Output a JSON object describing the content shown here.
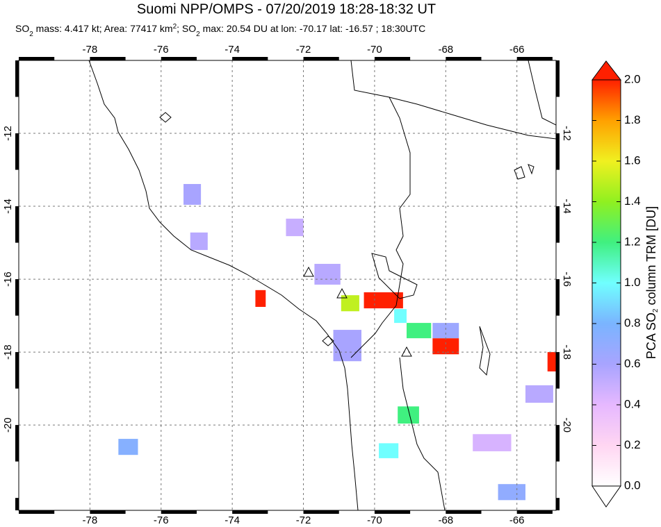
{
  "chart_data": {
    "type": "map",
    "title": "Suomi NPP/OMPS - 07/20/2019 18:28-18:32 UT",
    "subtitle": [
      "SO",
      "2",
      " mass: 4.417 kt; Area: 77417 km",
      "2",
      "; SO",
      "2",
      " max: 20.54 DU at lon: -70.17 lat: -16.57 ; 18:30UTC"
    ],
    "xlim": [
      -80,
      -64.9
    ],
    "ylim": [
      -22.34,
      -10
    ],
    "xticks": [
      -78,
      -76,
      -74,
      -72,
      -70,
      -68,
      -66
    ],
    "yticks": [
      -12,
      -14,
      -16,
      -18,
      -20
    ],
    "colorbar_label": [
      "PCA SO",
      "2",
      " column TRM [DU]"
    ],
    "clim": [
      0,
      2
    ],
    "cticks": [
      {
        "value": 0,
        "label": "0.0"
      },
      {
        "value": 0.2,
        "label": "0.2"
      },
      {
        "value": 0.4,
        "label": "0.4"
      },
      {
        "value": 0.6,
        "label": "0.6"
      },
      {
        "value": 0.8,
        "label": "0.8"
      },
      {
        "value": 1,
        "label": "1.0"
      },
      {
        "value": 1.2,
        "label": "1.2"
      },
      {
        "value": 1.4,
        "label": "1.4"
      },
      {
        "value": 1.6,
        "label": "1.6"
      },
      {
        "value": 1.8,
        "label": "1.8"
      },
      {
        "value": 2,
        "label": "2.0"
      }
    ],
    "colorscale": [
      "#ffffff",
      "#ffd6f2",
      "#e6b8ff",
      "#a8a4ff",
      "#7ab4ff",
      "#70ffff",
      "#40f080",
      "#90f020",
      "#f0f020",
      "#ffa000",
      "#ff2000"
    ],
    "cells": [
      {
        "lon": [
          -73.35,
          -73.06
        ],
        "lat": [
          -16.3,
          -16.76
        ],
        "value": 2
      },
      {
        "lon": [
          -70.3,
          -69.2
        ],
        "lat": [
          -16.36,
          -16.8
        ],
        "value": 2
      },
      {
        "lon": [
          -70.94,
          -70.43
        ],
        "lat": [
          -16.44,
          -16.88
        ],
        "value": 1.5
      },
      {
        "lon": [
          -68.37,
          -67.63
        ],
        "lat": [
          -17.62,
          -18.06
        ],
        "value": 2
      },
      {
        "lon": [
          -69.45,
          -69.1
        ],
        "lat": [
          -16.82,
          -17.2
        ],
        "value": 1.0
      },
      {
        "lon": [
          -69.1,
          -68.41
        ],
        "lat": [
          -17.2,
          -17.62
        ],
        "value": 1.2
      },
      {
        "lon": [
          -68.37,
          -67.63
        ],
        "lat": [
          -17.2,
          -17.62
        ],
        "value": 0.65
      },
      {
        "lon": [
          -65.14,
          -64.9
        ],
        "lat": [
          -18.0,
          -18.53
        ],
        "value": 2
      },
      {
        "lon": [
          -69.35,
          -68.75
        ],
        "lat": [
          -19.49,
          -19.96
        ],
        "value": 1.2
      },
      {
        "lon": [
          -69.88,
          -69.33
        ],
        "lat": [
          -20.5,
          -20.91
        ],
        "value": 1.0
      },
      {
        "lon": [
          -77.2,
          -76.65
        ],
        "lat": [
          -20.38,
          -20.82
        ],
        "value": 0.75
      },
      {
        "lon": [
          -66.53,
          -65.76
        ],
        "lat": [
          -21.62,
          -22.06
        ],
        "value": 0.7
      },
      {
        "lon": [
          -75.37,
          -74.88
        ],
        "lat": [
          -13.39,
          -13.96
        ],
        "value": 0.6
      },
      {
        "lon": [
          -75.18,
          -74.69
        ],
        "lat": [
          -14.72,
          -15.2
        ],
        "value": 0.55
      },
      {
        "lon": [
          -72.49,
          -72.0
        ],
        "lat": [
          -14.34,
          -14.82
        ],
        "value": 0.5
      },
      {
        "lon": [
          -71.69,
          -70.96
        ],
        "lat": [
          -15.58,
          -16.15
        ],
        "value": 0.55
      },
      {
        "lon": [
          -65.76,
          -64.98
        ],
        "lat": [
          -18.91,
          -19.39
        ],
        "value": 0.55
      },
      {
        "lon": [
          -71.16,
          -70.37
        ],
        "lat": [
          -17.39,
          -18.25
        ],
        "value": 0.6
      },
      {
        "lon": [
          -67.24,
          -66.16
        ],
        "lat": [
          -20.25,
          -20.72
        ],
        "value": 0.45
      }
    ]
  }
}
